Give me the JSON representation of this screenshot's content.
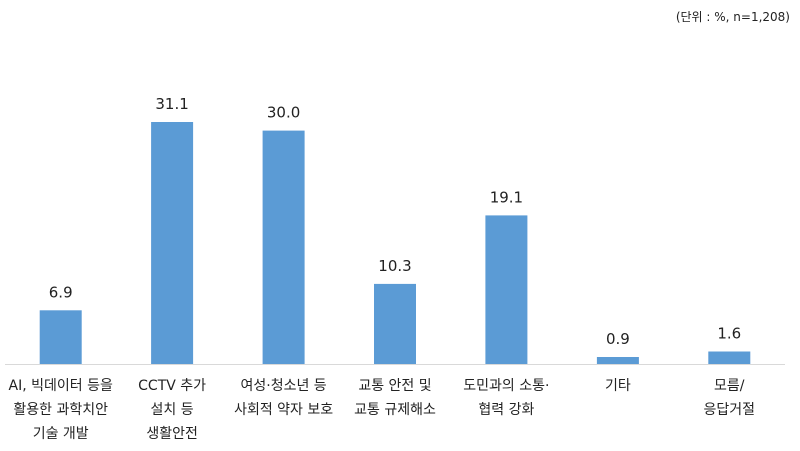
{
  "unit_note": "(단위 : %, n=1,208)",
  "colors": {
    "bar": "#5B9BD5",
    "axis": "#D9D9D9",
    "text": "#222222"
  },
  "chart_data": {
    "type": "bar",
    "categories": [
      [
        "AI, 빅데이터 등을",
        "활용한 과학치안",
        "기술 개발"
      ],
      [
        "CCTV 추가",
        "설치 등",
        "생활안전"
      ],
      [
        "여성·청소년 등",
        "사회적 약자 보호"
      ],
      [
        "교통 안전 및",
        "교통 규제해소"
      ],
      [
        "도민과의 소통·",
        "협력 강화"
      ],
      [
        "기타"
      ],
      [
        "모름/",
        "응답거절"
      ]
    ],
    "values": [
      6.9,
      31.1,
      30.0,
      10.3,
      19.1,
      0.9,
      1.6
    ],
    "value_labels": [
      "6.9",
      "31.1",
      "30.0",
      "10.3",
      "19.1",
      "0.9",
      "1.6"
    ],
    "title": "",
    "xlabel": "",
    "ylabel": "",
    "ylim": [
      0,
      31.1
    ],
    "grid": false,
    "legend": "none"
  }
}
